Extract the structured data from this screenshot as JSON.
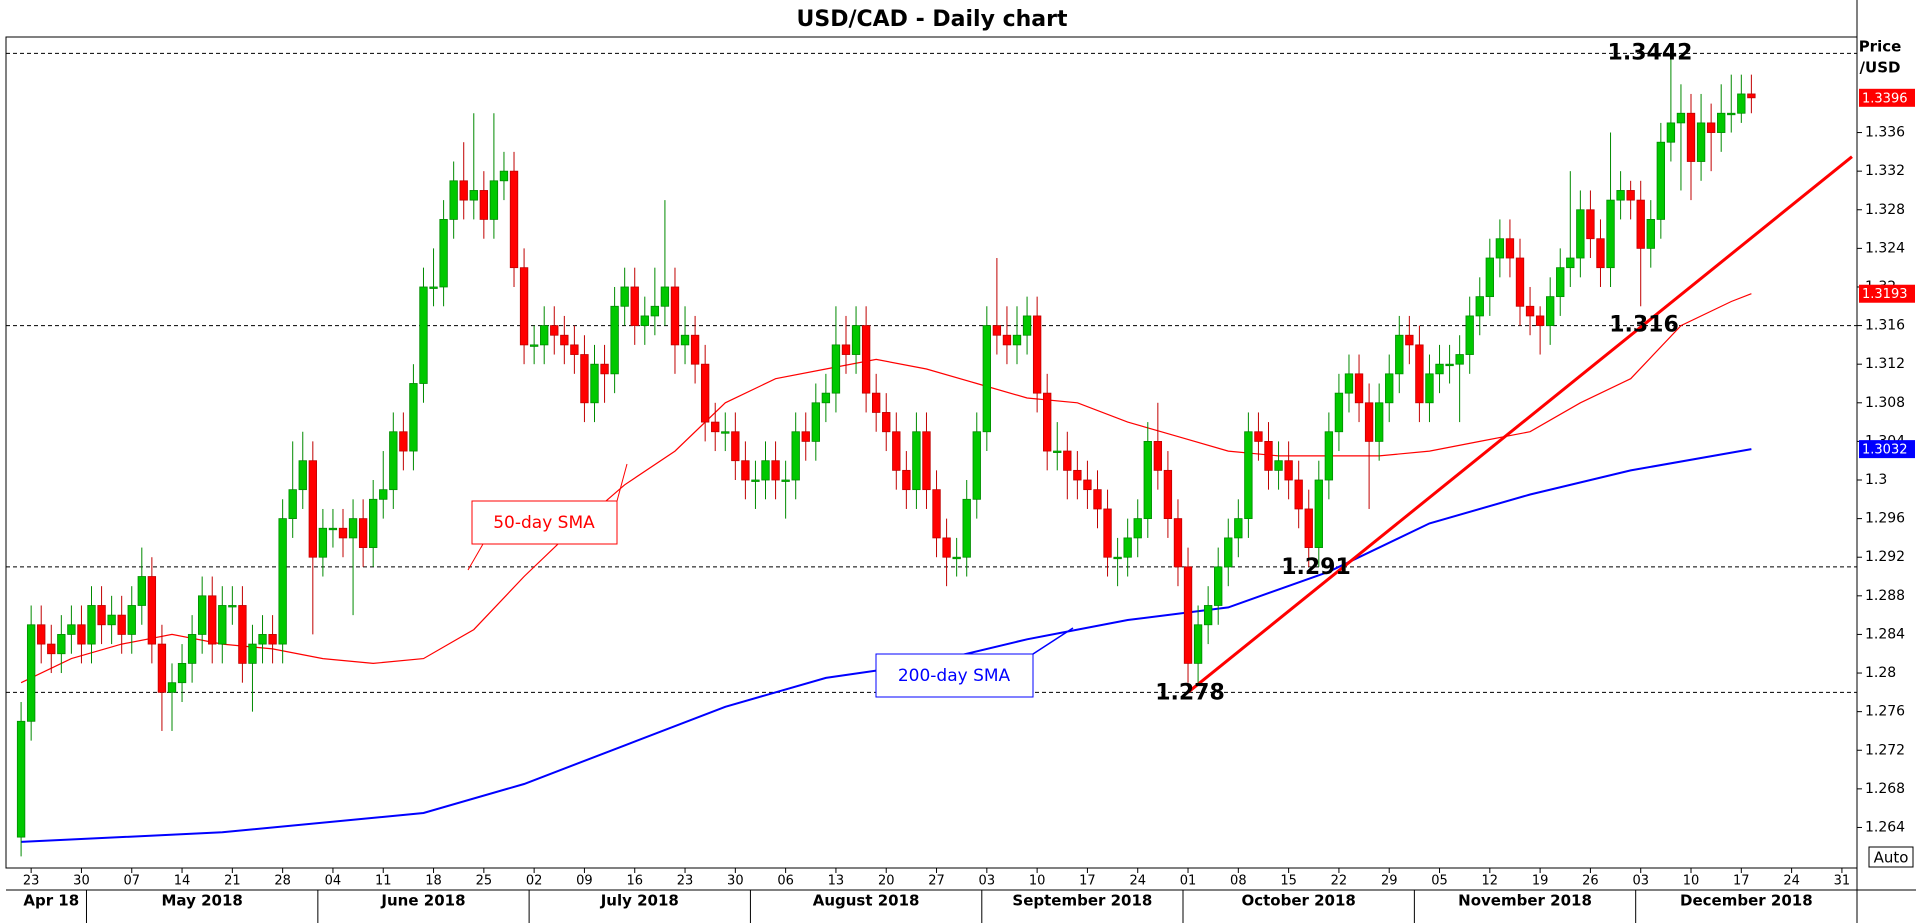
{
  "chart_data": {
    "type": "candlestick",
    "title": "USD/CAD - Daily chart",
    "y_axis_label": [
      "Price",
      "/USD"
    ],
    "scale_mode": "Auto",
    "up_color": "#00c800",
    "down_color": "#ff0000",
    "open": [
      1.263,
      1.275,
      1.285,
      1.283,
      1.282,
      1.284,
      1.285,
      1.283,
      1.287,
      1.285,
      1.286,
      1.284,
      1.287,
      1.29,
      1.283,
      1.278,
      1.279,
      1.281,
      1.284,
      1.288,
      1.283,
      1.287,
      1.287,
      1.281,
      1.283,
      1.284,
      1.283,
      1.296,
      1.299,
      1.302,
      1.292,
      1.295,
      1.295,
      1.294,
      1.296,
      1.293,
      1.298,
      1.299,
      1.305,
      1.303,
      1.31,
      1.32,
      1.32,
      1.327,
      1.331,
      1.329,
      1.33,
      1.327,
      1.331,
      1.332,
      1.322,
      1.314,
      1.314,
      1.316,
      1.315,
      1.314,
      1.313,
      1.308,
      1.312,
      1.311,
      1.318,
      1.32,
      1.316,
      1.317,
      1.318,
      1.32,
      1.314,
      1.315,
      1.312,
      1.306,
      1.305,
      1.305,
      1.302,
      1.3,
      1.3,
      1.302,
      1.3,
      1.3,
      1.305,
      1.304,
      1.308,
      1.309,
      1.314,
      1.313,
      1.316,
      1.309,
      1.307,
      1.305,
      1.301,
      1.299,
      1.305,
      1.299,
      1.294,
      1.292,
      1.292,
      1.298,
      1.305,
      1.316,
      1.315,
      1.314,
      1.315,
      1.317,
      1.309,
      1.303,
      1.303,
      1.301,
      1.3,
      1.299,
      1.297,
      1.292,
      1.292,
      1.294,
      1.296,
      1.304,
      1.301,
      1.296,
      1.291,
      1.281,
      1.285,
      1.287,
      1.291,
      1.294,
      1.296,
      1.305,
      1.304,
      1.301,
      1.302,
      1.3,
      1.297,
      1.293,
      1.3,
      1.305,
      1.309,
      1.311,
      1.308,
      1.304,
      1.308,
      1.311,
      1.315,
      1.314,
      1.308,
      1.311,
      1.312,
      1.312,
      1.313,
      1.317,
      1.319,
      1.323,
      1.325,
      1.323,
      1.318,
      1.317,
      1.316,
      1.319,
      1.322,
      1.323,
      1.328,
      1.325,
      1.322,
      1.329,
      1.33,
      1.329,
      1.324,
      1.327,
      1.335,
      1.337,
      1.338,
      1.333,
      1.337,
      1.336,
      1.338,
      1.338,
      1.34
    ],
    "high": [
      1.277,
      1.287,
      1.287,
      1.285,
      1.286,
      1.287,
      1.287,
      1.289,
      1.289,
      1.288,
      1.288,
      1.289,
      1.293,
      1.292,
      1.285,
      1.281,
      1.283,
      1.286,
      1.29,
      1.29,
      1.289,
      1.289,
      1.289,
      1.285,
      1.286,
      1.286,
      1.298,
      1.304,
      1.305,
      1.304,
      1.297,
      1.297,
      1.297,
      1.298,
      1.298,
      1.3,
      1.303,
      1.307,
      1.307,
      1.312,
      1.322,
      1.324,
      1.329,
      1.333,
      1.335,
      1.338,
      1.332,
      1.338,
      1.334,
      1.334,
      1.324,
      1.316,
      1.318,
      1.318,
      1.317,
      1.316,
      1.315,
      1.314,
      1.314,
      1.32,
      1.322,
      1.322,
      1.319,
      1.322,
      1.329,
      1.322,
      1.318,
      1.317,
      1.314,
      1.308,
      1.307,
      1.307,
      1.304,
      1.302,
      1.304,
      1.304,
      1.302,
      1.307,
      1.307,
      1.31,
      1.311,
      1.318,
      1.317,
      1.318,
      1.318,
      1.311,
      1.309,
      1.307,
      1.303,
      1.307,
      1.307,
      1.301,
      1.296,
      1.294,
      1.3,
      1.307,
      1.318,
      1.323,
      1.318,
      1.318,
      1.319,
      1.319,
      1.311,
      1.306,
      1.305,
      1.303,
      1.302,
      1.301,
      1.299,
      1.294,
      1.296,
      1.298,
      1.306,
      1.308,
      1.303,
      1.298,
      1.293,
      1.287,
      1.289,
      1.293,
      1.296,
      1.298,
      1.307,
      1.307,
      1.306,
      1.304,
      1.304,
      1.302,
      1.299,
      1.302,
      1.307,
      1.311,
      1.313,
      1.313,
      1.31,
      1.31,
      1.313,
      1.317,
      1.317,
      1.316,
      1.313,
      1.314,
      1.314,
      1.315,
      1.319,
      1.321,
      1.325,
      1.327,
      1.327,
      1.325,
      1.32,
      1.318,
      1.321,
      1.324,
      1.332,
      1.33,
      1.33,
      1.327,
      1.336,
      1.332,
      1.331,
      1.331,
      1.329,
      1.337,
      1.3442,
      1.341,
      1.34,
      1.34,
      1.339,
      1.341,
      1.342,
      1.342,
      1.342
    ],
    "low": [
      1.261,
      1.273,
      1.281,
      1.28,
      1.28,
      1.282,
      1.281,
      1.281,
      1.283,
      1.283,
      1.282,
      1.282,
      1.285,
      1.281,
      1.274,
      1.274,
      1.277,
      1.279,
      1.282,
      1.281,
      1.281,
      1.285,
      1.279,
      1.276,
      1.281,
      1.281,
      1.281,
      1.294,
      1.297,
      1.284,
      1.29,
      1.293,
      1.292,
      1.286,
      1.291,
      1.291,
      1.296,
      1.297,
      1.301,
      1.301,
      1.308,
      1.318,
      1.318,
      1.325,
      1.327,
      1.327,
      1.325,
      1.325,
      1.329,
      1.32,
      1.312,
      1.312,
      1.312,
      1.313,
      1.312,
      1.311,
      1.306,
      1.306,
      1.308,
      1.309,
      1.316,
      1.314,
      1.314,
      1.315,
      1.316,
      1.311,
      1.312,
      1.31,
      1.304,
      1.303,
      1.303,
      1.3,
      1.298,
      1.297,
      1.298,
      1.298,
      1.296,
      1.298,
      1.302,
      1.302,
      1.306,
      1.307,
      1.311,
      1.311,
      1.307,
      1.305,
      1.303,
      1.299,
      1.297,
      1.297,
      1.297,
      1.292,
      1.289,
      1.29,
      1.29,
      1.296,
      1.303,
      1.313,
      1.312,
      1.312,
      1.313,
      1.307,
      1.301,
      1.301,
      1.298,
      1.298,
      1.297,
      1.295,
      1.29,
      1.289,
      1.29,
      1.292,
      1.294,
      1.299,
      1.294,
      1.289,
      1.279,
      1.279,
      1.283,
      1.285,
      1.289,
      1.292,
      1.294,
      1.302,
      1.299,
      1.299,
      1.298,
      1.295,
      1.291,
      1.291,
      1.298,
      1.303,
      1.307,
      1.306,
      1.297,
      1.302,
      1.306,
      1.309,
      1.312,
      1.306,
      1.306,
      1.309,
      1.31,
      1.306,
      1.311,
      1.315,
      1.317,
      1.321,
      1.321,
      1.316,
      1.315,
      1.313,
      1.314,
      1.317,
      1.32,
      1.321,
      1.323,
      1.32,
      1.32,
      1.327,
      1.327,
      1.318,
      1.322,
      1.325,
      1.333,
      1.33,
      1.329,
      1.331,
      1.332,
      1.334,
      1.336,
      1.337,
      1.338
    ],
    "close": [
      1.275,
      1.285,
      1.283,
      1.282,
      1.284,
      1.285,
      1.283,
      1.287,
      1.285,
      1.286,
      1.284,
      1.287,
      1.29,
      1.283,
      1.278,
      1.279,
      1.281,
      1.284,
      1.288,
      1.283,
      1.287,
      1.287,
      1.281,
      1.283,
      1.284,
      1.283,
      1.296,
      1.299,
      1.302,
      1.292,
      1.295,
      1.295,
      1.294,
      1.296,
      1.293,
      1.298,
      1.299,
      1.305,
      1.303,
      1.31,
      1.32,
      1.32,
      1.327,
      1.331,
      1.329,
      1.33,
      1.327,
      1.331,
      1.332,
      1.322,
      1.314,
      1.314,
      1.316,
      1.315,
      1.314,
      1.313,
      1.308,
      1.312,
      1.311,
      1.318,
      1.32,
      1.316,
      1.317,
      1.318,
      1.32,
      1.314,
      1.315,
      1.312,
      1.306,
      1.305,
      1.305,
      1.302,
      1.3,
      1.3,
      1.302,
      1.3,
      1.3,
      1.305,
      1.304,
      1.308,
      1.309,
      1.314,
      1.313,
      1.316,
      1.309,
      1.307,
      1.305,
      1.301,
      1.299,
      1.305,
      1.299,
      1.294,
      1.292,
      1.292,
      1.298,
      1.305,
      1.316,
      1.315,
      1.314,
      1.315,
      1.317,
      1.309,
      1.303,
      1.303,
      1.301,
      1.3,
      1.299,
      1.297,
      1.292,
      1.292,
      1.294,
      1.296,
      1.304,
      1.301,
      1.296,
      1.291,
      1.281,
      1.285,
      1.287,
      1.291,
      1.294,
      1.296,
      1.305,
      1.304,
      1.301,
      1.302,
      1.3,
      1.297,
      1.293,
      1.3,
      1.305,
      1.309,
      1.311,
      1.308,
      1.304,
      1.308,
      1.311,
      1.315,
      1.314,
      1.308,
      1.311,
      1.312,
      1.312,
      1.313,
      1.317,
      1.319,
      1.323,
      1.325,
      1.323,
      1.318,
      1.317,
      1.316,
      1.319,
      1.322,
      1.323,
      1.328,
      1.325,
      1.322,
      1.329,
      1.33,
      1.329,
      1.324,
      1.327,
      1.335,
      1.337,
      1.338,
      1.333,
      1.337,
      1.336,
      1.338,
      1.338,
      1.34,
      1.3396
    ],
    "series": [
      {
        "name": "50-day SMA",
        "color": "#ff0000",
        "x": [
          0,
          5,
          10,
          15,
          20,
          25,
          30,
          35,
          40,
          45,
          50,
          55,
          60,
          65,
          70,
          75,
          80,
          85,
          90,
          95,
          100,
          105,
          110,
          115,
          120,
          125,
          130,
          135,
          140,
          145,
          150,
          155,
          160,
          165,
          170,
          172
        ],
        "values": [
          1.279,
          1.2815,
          1.283,
          1.284,
          1.283,
          1.2825,
          1.2815,
          1.281,
          1.2815,
          1.2845,
          1.29,
          1.295,
          1.2995,
          1.303,
          1.308,
          1.3105,
          1.3115,
          1.3125,
          1.3115,
          1.31,
          1.3085,
          1.308,
          1.306,
          1.3045,
          1.303,
          1.3025,
          1.3025,
          1.3025,
          1.303,
          1.304,
          1.305,
          1.308,
          1.3105,
          1.316,
          1.3185,
          1.3193
        ]
      },
      {
        "name": "200-day SMA",
        "color": "#0000ff",
        "x": [
          0,
          20,
          40,
          50,
          60,
          70,
          80,
          90,
          100,
          110,
          120,
          130,
          140,
          150,
          160,
          172
        ],
        "values": [
          1.2625,
          1.2635,
          1.2655,
          1.2685,
          1.2725,
          1.2765,
          1.2795,
          1.281,
          1.2835,
          1.2855,
          1.2868,
          1.2905,
          1.2955,
          1.2985,
          1.301,
          1.3032
        ]
      }
    ],
    "levels": [
      1.3442,
      1.316,
      1.291,
      1.278
    ],
    "trendline": {
      "color": "#ff0000",
      "x": [
        116,
        182
      ],
      "y": [
        1.278,
        1.3335
      ]
    },
    "xlim": [
      -1.5,
      182.5
    ],
    "ylim": [
      1.2598,
      1.3459
    ],
    "yticks": [
      1.264,
      1.268,
      1.272,
      1.276,
      1.28,
      1.284,
      1.288,
      1.292,
      1.296,
      1.3,
      1.304,
      1.308,
      1.312,
      1.316,
      1.32,
      1.324,
      1.328,
      1.332,
      1.336
    ],
    "xticks": [
      {
        "value": 1,
        "label": "23"
      },
      {
        "value": 6,
        "label": "30"
      },
      {
        "value": 11,
        "label": "07"
      },
      {
        "value": 16,
        "label": "14"
      },
      {
        "value": 21,
        "label": "21"
      },
      {
        "value": 26,
        "label": "28"
      },
      {
        "value": 31,
        "label": "04"
      },
      {
        "value": 36,
        "label": "11"
      },
      {
        "value": 41,
        "label": "18"
      },
      {
        "value": 46,
        "label": "25"
      },
      {
        "value": 51,
        "label": "02"
      },
      {
        "value": 56,
        "label": "09"
      },
      {
        "value": 61,
        "label": "16"
      },
      {
        "value": 66,
        "label": "23"
      },
      {
        "value": 71,
        "label": "30"
      },
      {
        "value": 76,
        "label": "06"
      },
      {
        "value": 81,
        "label": "13"
      },
      {
        "value": 86,
        "label": "20"
      },
      {
        "value": 91,
        "label": "27"
      },
      {
        "value": 96,
        "label": "03"
      },
      {
        "value": 101,
        "label": "10"
      },
      {
        "value": 106,
        "label": "17"
      },
      {
        "value": 111,
        "label": "24"
      },
      {
        "value": 116,
        "label": "01"
      },
      {
        "value": 121,
        "label": "08"
      },
      {
        "value": 126,
        "label": "15"
      },
      {
        "value": 131,
        "label": "22"
      },
      {
        "value": 136,
        "label": "29"
      },
      {
        "value": 141,
        "label": "05"
      },
      {
        "value": 146,
        "label": "12"
      },
      {
        "value": 151,
        "label": "19"
      },
      {
        "value": 156,
        "label": "26"
      },
      {
        "value": 161,
        "label": "03"
      },
      {
        "value": 166,
        "label": "10"
      },
      {
        "value": 171,
        "label": "17"
      },
      {
        "value": 176,
        "label": "24"
      },
      {
        "value": 181,
        "label": "31"
      }
    ],
    "months": [
      {
        "value": 0,
        "label": "Apr 18"
      },
      {
        "value": 7,
        "label": "May 2018"
      },
      {
        "value": 30,
        "label": "June 2018"
      },
      {
        "value": 51,
        "label": "July 2018"
      },
      {
        "value": 73,
        "label": "August 2018"
      },
      {
        "value": 96,
        "label": "September 2018"
      },
      {
        "value": 116,
        "label": "October 2018"
      },
      {
        "value": 139,
        "label": "November 2018"
      },
      {
        "value": 161,
        "label": "December 2018"
      }
    ]
  }
}
